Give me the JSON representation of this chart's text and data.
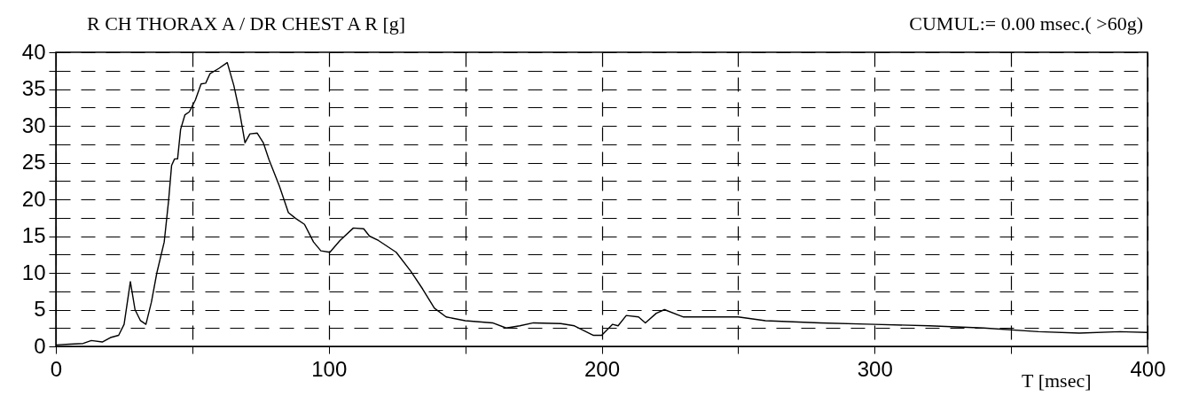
{
  "chart_data": {
    "type": "line",
    "title": "R CH THORAX A / DR CHEST A R [g]",
    "xlabel": "T [msec]",
    "annotations": [
      "CUMUL:= 0.00 msec.( >60g)"
    ],
    "series": [
      {
        "color": "#000000",
        "x": [
          0,
          5,
          10,
          13,
          17,
          20,
          23,
          25,
          27.3,
          29,
          31,
          33,
          35,
          37,
          39.7,
          41.3,
          42.4,
          43.5,
          44.6,
          45.7,
          47.3,
          48.9,
          51.1,
          53.2,
          54.9,
          56.5,
          59.7,
          62.8,
          65.2,
          67.3,
          69.3,
          71.1,
          73.8,
          76,
          78.1,
          81.9,
          85.2,
          87.9,
          91.1,
          94.4,
          97.1,
          100.4,
          104.1,
          109,
          112.8,
          114.9,
          118.2,
          124.7,
          130.1,
          134.4,
          138.7,
          143,
          150,
          160,
          165,
          170,
          175,
          185,
          190,
          197,
          200,
          204,
          206,
          209,
          213.5,
          216,
          220,
          223,
          230,
          240,
          250,
          260,
          280,
          300,
          320,
          340,
          360,
          375,
          390,
          400
        ],
        "values": [
          0.2,
          0.3,
          0.4,
          0.8,
          0.6,
          1.2,
          1.5,
          3,
          8.8,
          5,
          3.5,
          3.0,
          6,
          10,
          14.2,
          19.8,
          24.6,
          25.5,
          25.5,
          29.5,
          31.5,
          31.9,
          33.5,
          35.7,
          35.8,
          37.1,
          37.8,
          38.6,
          35.5,
          31.9,
          27.7,
          28.9,
          29.0,
          27.7,
          25.4,
          21.8,
          18.2,
          17.4,
          16.6,
          14.2,
          13.0,
          12.8,
          14.4,
          16.1,
          16.0,
          15.0,
          14.4,
          12.8,
          10.2,
          7.8,
          5.2,
          4.0,
          3.5,
          3.2,
          2.5,
          2.8,
          3.2,
          3.1,
          2.8,
          1.5,
          1.5,
          3,
          2.8,
          4.2,
          4.0,
          3.2,
          4.5,
          5,
          4.0,
          4.0,
          4.0,
          3.5,
          3.2,
          3.0,
          2.8,
          2.5,
          2.0,
          1.8,
          2.0,
          1.9
        ]
      }
    ],
    "xlim": [
      0,
      400
    ],
    "xticks": [
      0,
      {
        "value": 50,
        "label": null
      },
      100,
      {
        "value": 150,
        "label": null
      },
      200,
      {
        "value": 250,
        "label": null
      },
      300,
      {
        "value": 350,
        "label": null
      },
      400
    ],
    "ylim": [
      0,
      40
    ],
    "yticks": [
      0,
      {
        "value": 2.5,
        "label": null
      },
      5,
      {
        "value": 7.5,
        "label": null
      },
      10,
      {
        "value": 12.5,
        "label": null
      },
      15,
      {
        "value": 17.5,
        "label": null
      },
      20,
      {
        "value": 22.5,
        "label": null
      },
      25,
      {
        "value": 27.5,
        "label": null
      },
      30,
      {
        "value": 32.5,
        "label": null
      },
      35,
      {
        "value": 37.5,
        "label": null
      },
      40
    ],
    "grid": true,
    "line_style": "solid",
    "marker": "none"
  }
}
